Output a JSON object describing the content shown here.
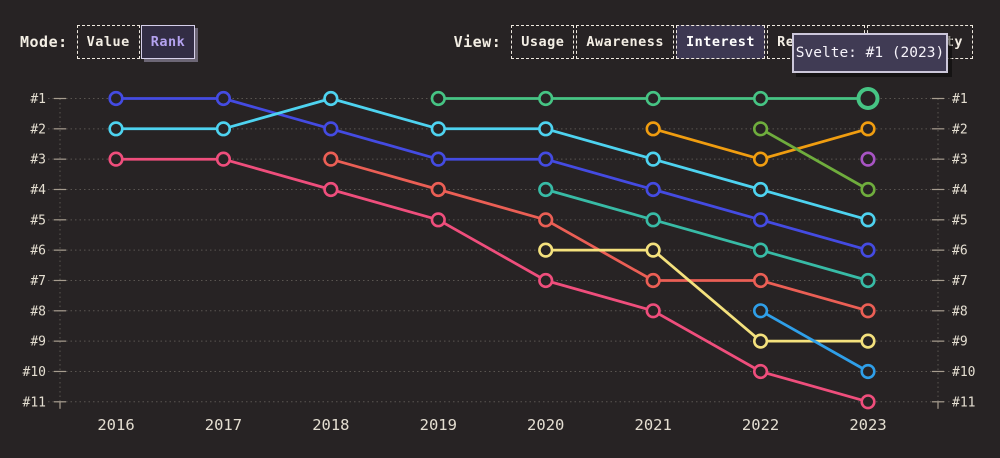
{
  "header": {
    "mode": {
      "label": "Mode:",
      "options": [
        {
          "label": "Value",
          "selected": false
        },
        {
          "label": "Rank",
          "selected": true
        }
      ]
    },
    "view": {
      "label": "View:",
      "options": [
        {
          "label": "Usage",
          "selected": false
        },
        {
          "label": "Awareness",
          "selected": false
        },
        {
          "label": "Interest",
          "selected": true
        },
        {
          "label": "Retention",
          "selected": false
        },
        {
          "label": "Positivity",
          "selected": false
        }
      ]
    }
  },
  "tooltip": {
    "text": "Svelte: #1 (2023)"
  },
  "colors": {
    "background": "#272324",
    "grid": "#6b6661",
    "axis": "#5a5550",
    "tick": "#a79d8f",
    "label": "#e4ded1",
    "accent_selected_mode": "#b4a2ef",
    "tooltip_bg": "#403b54",
    "tooltip_border": "#ccc7da"
  },
  "chart_data": {
    "type": "line",
    "title": "",
    "xlabel": "",
    "ylabel": "",
    "x": [
      2016,
      2017,
      2018,
      2019,
      2020,
      2021,
      2022,
      2023
    ],
    "y_ticks": [
      "#1",
      "#2",
      "#3",
      "#4",
      "#5",
      "#6",
      "#7",
      "#8",
      "#9",
      "#10",
      "#11"
    ],
    "y_range": [
      1,
      11
    ],
    "y_axis_inverted": true,
    "grid": "dotted-horizontal",
    "legend": "none",
    "series": [
      {
        "name": "indigo",
        "color": "#444be2",
        "ranks": [
          1,
          1,
          2,
          3,
          3,
          4,
          5,
          6
        ]
      },
      {
        "name": "cyan",
        "color": "#4ed3f0",
        "ranks": [
          2,
          2,
          1,
          2,
          2,
          3,
          4,
          5
        ]
      },
      {
        "name": "pink",
        "color": "#ef4e7c",
        "ranks": [
          3,
          3,
          4,
          5,
          7,
          8,
          10,
          11
        ]
      },
      {
        "name": "red",
        "color": "#eb5f55",
        "ranks": [
          null,
          null,
          3,
          4,
          5,
          7,
          7,
          8
        ]
      },
      {
        "name": "svelte-green",
        "color": "#46c484",
        "ranks": [
          null,
          null,
          null,
          1,
          1,
          1,
          1,
          1
        ]
      },
      {
        "name": "teal",
        "color": "#38bba6",
        "ranks": [
          null,
          null,
          null,
          null,
          4,
          5,
          6,
          7
        ]
      },
      {
        "name": "yellow",
        "color": "#f4e17d",
        "ranks": [
          null,
          null,
          null,
          null,
          6,
          6,
          9,
          9
        ]
      },
      {
        "name": "orange",
        "color": "#f09d10",
        "ranks": [
          null,
          null,
          null,
          null,
          null,
          2,
          3,
          2
        ]
      },
      {
        "name": "olive",
        "color": "#6fad3d",
        "ranks": [
          null,
          null,
          null,
          null,
          null,
          null,
          2,
          4
        ]
      },
      {
        "name": "sky",
        "color": "#2f9fe9",
        "ranks": [
          null,
          null,
          null,
          null,
          null,
          null,
          8,
          10
        ]
      },
      {
        "name": "purple",
        "color": "#a854c4",
        "ranks": [
          null,
          null,
          null,
          null,
          null,
          null,
          null,
          3
        ]
      }
    ],
    "highlight": {
      "series": "svelte-green",
      "x": 2023,
      "rank": 1,
      "tooltip": "Svelte: #1 (2023)"
    }
  }
}
